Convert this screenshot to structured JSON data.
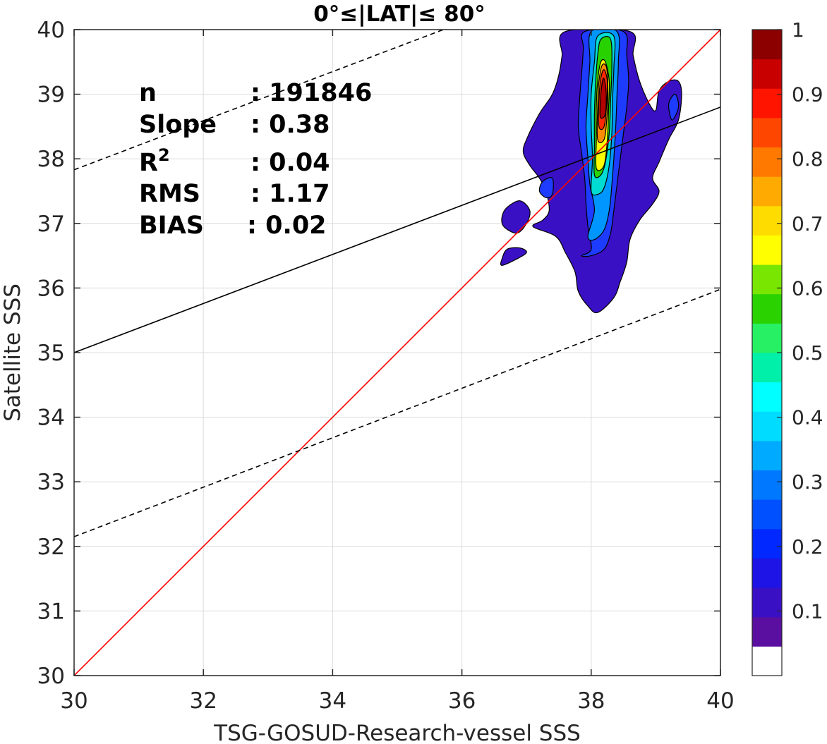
{
  "chart_data": {
    "type": "heatmap",
    "title": "0°≤|LAT|≤ 80°",
    "xlabel": "TSG-GOSUD-Research-vessel SSS",
    "ylabel": "Satellite SSS",
    "xlim": [
      30,
      40
    ],
    "ylim": [
      30,
      40
    ],
    "xticks": [
      "30",
      "32",
      "34",
      "36",
      "38",
      "40"
    ],
    "yticks": [
      "30",
      "31",
      "32",
      "33",
      "34",
      "35",
      "36",
      "37",
      "38",
      "39",
      "40"
    ],
    "grid": true,
    "stats": [
      {
        "label": "n",
        "value": ": 191846"
      },
      {
        "label": "Slope",
        "value": ": 0.38"
      },
      {
        "label": "R",
        "sup": "2",
        "value": ": 0.04"
      },
      {
        "label": "RMS",
        "value": ": 1.17"
      },
      {
        "label": "BIAS",
        "value": ": 0.02"
      }
    ],
    "lines": [
      {
        "kind": "one-to-one",
        "color": "#ff0000",
        "style": "solid",
        "x": [
          30,
          40
        ],
        "y": [
          30,
          40
        ]
      },
      {
        "kind": "regression",
        "color": "#000000",
        "style": "solid",
        "x": [
          30,
          40
        ],
        "y": [
          35.0,
          38.8
        ]
      },
      {
        "kind": "upper-bound",
        "color": "#000000",
        "style": "dashed",
        "x": [
          30,
          40
        ],
        "y": [
          37.83,
          41.63
        ]
      },
      {
        "kind": "lower-bound",
        "color": "#000000",
        "style": "dashed",
        "x": [
          30,
          40
        ],
        "y": [
          32.15,
          35.98
        ]
      }
    ],
    "density_levels": [
      {
        "level": 0.05,
        "color": "#3a10c4",
        "poly": [
          [
            37.1,
            36.95
          ],
          [
            37.25,
            37.05
          ],
          [
            37.35,
            37.2
          ],
          [
            37.3,
            37.5
          ],
          [
            37.2,
            37.7
          ],
          [
            37.05,
            37.9
          ],
          [
            36.95,
            38.1
          ],
          [
            37.0,
            38.3
          ],
          [
            37.2,
            38.7
          ],
          [
            37.4,
            39.0
          ],
          [
            37.5,
            39.3
          ],
          [
            37.55,
            39.6
          ],
          [
            37.6,
            39.97
          ],
          [
            38.6,
            39.97
          ],
          [
            38.65,
            39.6
          ],
          [
            38.75,
            39.2
          ],
          [
            38.9,
            38.85
          ],
          [
            39.0,
            38.75
          ],
          [
            39.05,
            39.05
          ],
          [
            39.2,
            39.2
          ],
          [
            39.35,
            39.2
          ],
          [
            39.4,
            39.0
          ],
          [
            39.35,
            38.6
          ],
          [
            39.2,
            38.3
          ],
          [
            39.05,
            37.95
          ],
          [
            38.95,
            37.7
          ],
          [
            39.05,
            37.5
          ],
          [
            38.95,
            37.3
          ],
          [
            38.75,
            37.05
          ],
          [
            38.6,
            36.75
          ],
          [
            38.55,
            36.4
          ],
          [
            38.45,
            36.1
          ],
          [
            38.35,
            35.85
          ],
          [
            38.1,
            35.62
          ],
          [
            37.95,
            35.72
          ],
          [
            37.8,
            35.95
          ],
          [
            37.75,
            36.25
          ],
          [
            37.6,
            36.55
          ],
          [
            37.45,
            36.8
          ]
        ]
      },
      {
        "level": 0.05,
        "color": "#3a10c4",
        "poly": [
          [
            36.65,
            36.95
          ],
          [
            36.85,
            36.85
          ],
          [
            37.0,
            37.0
          ],
          [
            37.05,
            37.2
          ],
          [
            36.9,
            37.35
          ],
          [
            36.7,
            37.25
          ],
          [
            36.62,
            37.1
          ]
        ]
      },
      {
        "level": 0.05,
        "color": "#3a10c4",
        "poly": [
          [
            36.62,
            36.35
          ],
          [
            36.85,
            36.45
          ],
          [
            37.0,
            36.55
          ],
          [
            36.9,
            36.62
          ],
          [
            36.7,
            36.6
          ],
          [
            36.62,
            36.45
          ]
        ]
      },
      {
        "level": 0.15,
        "color": "#1e3cff",
        "poly": [
          [
            37.85,
            36.5
          ],
          [
            38.0,
            36.6
          ],
          [
            37.95,
            36.95
          ],
          [
            37.92,
            37.3
          ],
          [
            37.9,
            37.7
          ],
          [
            37.85,
            38.1
          ],
          [
            37.8,
            38.5
          ],
          [
            37.82,
            38.9
          ],
          [
            37.85,
            39.3
          ],
          [
            37.88,
            39.7
          ],
          [
            37.9,
            39.97
          ],
          [
            38.5,
            39.97
          ],
          [
            38.55,
            39.6
          ],
          [
            38.58,
            39.2
          ],
          [
            38.55,
            38.8
          ],
          [
            38.5,
            38.4
          ],
          [
            38.45,
            38.0
          ],
          [
            38.4,
            37.6
          ],
          [
            38.35,
            37.2
          ],
          [
            38.3,
            36.85
          ],
          [
            38.2,
            36.6
          ],
          [
            38.0,
            36.5
          ]
        ]
      },
      {
        "level": 0.15,
        "color": "#1e3cff",
        "poly": [
          [
            37.25,
            37.65
          ],
          [
            37.4,
            37.7
          ],
          [
            37.4,
            37.45
          ],
          [
            37.3,
            37.4
          ],
          [
            37.2,
            37.5
          ]
        ]
      },
      {
        "level": 0.15,
        "color": "#1e3cff",
        "poly": [
          [
            39.25,
            38.6
          ],
          [
            39.35,
            38.8
          ],
          [
            39.3,
            39.0
          ],
          [
            39.2,
            38.85
          ]
        ]
      },
      {
        "level": 0.25,
        "color": "#0096ff",
        "poly": [
          [
            37.95,
            36.8
          ],
          [
            38.05,
            37.2
          ],
          [
            37.98,
            37.6
          ],
          [
            37.95,
            38.0
          ],
          [
            37.92,
            38.5
          ],
          [
            37.95,
            39.0
          ],
          [
            37.98,
            39.5
          ],
          [
            38.0,
            39.97
          ],
          [
            38.4,
            39.97
          ],
          [
            38.42,
            39.5
          ],
          [
            38.4,
            39.0
          ],
          [
            38.38,
            38.5
          ],
          [
            38.35,
            38.0
          ],
          [
            38.32,
            37.6
          ],
          [
            38.28,
            37.2
          ],
          [
            38.2,
            36.9
          ],
          [
            38.05,
            36.75
          ]
        ]
      },
      {
        "level": 0.35,
        "color": "#00dcd2",
        "poly": [
          [
            38.0,
            37.5
          ],
          [
            38.02,
            38.0
          ],
          [
            38.0,
            38.5
          ],
          [
            38.0,
            39.0
          ],
          [
            38.05,
            39.5
          ],
          [
            38.1,
            39.9
          ],
          [
            38.35,
            39.9
          ],
          [
            38.35,
            39.4
          ],
          [
            38.33,
            38.9
          ],
          [
            38.32,
            38.4
          ],
          [
            38.28,
            37.9
          ],
          [
            38.2,
            37.55
          ],
          [
            38.1,
            37.45
          ]
        ]
      },
      {
        "level": 0.45,
        "color": "#28d200",
        "poly": [
          [
            38.05,
            37.75
          ],
          [
            38.05,
            38.2
          ],
          [
            38.05,
            38.7
          ],
          [
            38.07,
            39.2
          ],
          [
            38.1,
            39.6
          ],
          [
            38.15,
            39.85
          ],
          [
            38.3,
            39.85
          ],
          [
            38.32,
            39.4
          ],
          [
            38.3,
            38.9
          ],
          [
            38.28,
            38.4
          ],
          [
            38.22,
            37.95
          ],
          [
            38.15,
            37.75
          ]
        ]
      },
      {
        "level": 0.6,
        "color": "#ffff00",
        "poly": [
          [
            38.08,
            37.85
          ],
          [
            38.08,
            38.3
          ],
          [
            38.08,
            38.8
          ],
          [
            38.1,
            39.2
          ],
          [
            38.15,
            39.5
          ],
          [
            38.22,
            39.5
          ],
          [
            38.28,
            39.2
          ],
          [
            38.27,
            38.8
          ],
          [
            38.25,
            38.3
          ],
          [
            38.2,
            37.9
          ]
        ]
      },
      {
        "level": 0.75,
        "color": "#ff8c00",
        "poly": [
          [
            38.1,
            38.3
          ],
          [
            38.1,
            38.8
          ],
          [
            38.12,
            39.2
          ],
          [
            38.17,
            39.45
          ],
          [
            38.24,
            39.4
          ],
          [
            38.26,
            39.0
          ],
          [
            38.24,
            38.6
          ],
          [
            38.2,
            38.3
          ]
        ]
      },
      {
        "level": 0.85,
        "color": "#ff2800",
        "poly": [
          [
            38.12,
            38.5
          ],
          [
            38.12,
            38.9
          ],
          [
            38.15,
            39.25
          ],
          [
            38.2,
            39.38
          ],
          [
            38.25,
            39.2
          ],
          [
            38.24,
            38.85
          ],
          [
            38.2,
            38.5
          ]
        ]
      },
      {
        "level": 0.95,
        "color": "#b40000",
        "poly": [
          [
            38.14,
            38.65
          ],
          [
            38.15,
            39.0
          ],
          [
            38.19,
            39.25
          ],
          [
            38.23,
            39.05
          ],
          [
            38.22,
            38.7
          ]
        ]
      }
    ],
    "colorbar": {
      "ticks": [
        "0.1",
        "0.2",
        "0.3",
        "0.4",
        "0.5",
        "0.6",
        "0.7",
        "0.8",
        "0.9",
        "1"
      ],
      "tick_values": [
        0.1,
        0.2,
        0.3,
        0.4,
        0.5,
        0.6,
        0.7,
        0.8,
        0.9,
        1.0
      ],
      "colors": [
        "#ffffff",
        "#5a0fa0",
        "#3a10c4",
        "#1e14e6",
        "#0028ff",
        "#0050ff",
        "#0078ff",
        "#00aaff",
        "#00dcff",
        "#00ffff",
        "#00f0aa",
        "#28f064",
        "#2ad200",
        "#78e600",
        "#ffff00",
        "#ffdc00",
        "#ffaa00",
        "#ff7800",
        "#ff4600",
        "#ff1400",
        "#c80000",
        "#8c0000"
      ]
    }
  }
}
